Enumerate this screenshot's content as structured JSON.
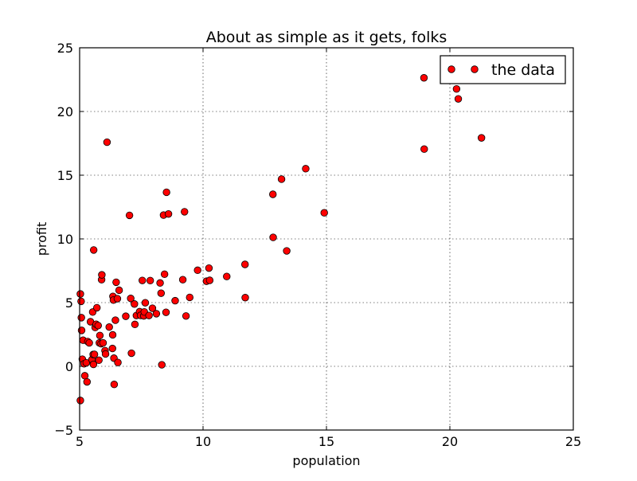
{
  "chart_data": {
    "type": "scatter",
    "title": "About as simple as it gets, folks",
    "xlabel": "population",
    "ylabel": "profit",
    "xlim": [
      5,
      25
    ],
    "ylim": [
      -5,
      25
    ],
    "xticks": [
      5,
      10,
      15,
      20,
      25
    ],
    "yticks": [
      -5,
      0,
      5,
      10,
      15,
      20,
      25
    ],
    "grid": true,
    "legend_position": "top-right",
    "series": [
      {
        "name": "the data",
        "color": "#ff0000",
        "marker": "circle",
        "points": [
          [
            5.03,
            -2.68
          ],
          [
            5.03,
            5.68
          ],
          [
            5.06,
            5.1
          ],
          [
            5.07,
            3.82
          ],
          [
            5.08,
            2.82
          ],
          [
            5.11,
            0.56
          ],
          [
            5.14,
            2.05
          ],
          [
            5.18,
            0.2
          ],
          [
            5.21,
            -0.74
          ],
          [
            5.27,
            0.28
          ],
          [
            5.3,
            -1.22
          ],
          [
            5.33,
            1.94
          ],
          [
            5.39,
            1.84
          ],
          [
            5.44,
            3.5
          ],
          [
            5.5,
            0.53
          ],
          [
            5.53,
            4.26
          ],
          [
            5.55,
            0.93
          ],
          [
            5.56,
            0.15
          ],
          [
            5.57,
            9.13
          ],
          [
            5.6,
            0.94
          ],
          [
            5.63,
            3.05
          ],
          [
            5.67,
            3.3
          ],
          [
            5.7,
            4.6
          ],
          [
            5.75,
            3.2
          ],
          [
            5.78,
            0.48
          ],
          [
            5.8,
            1.84
          ],
          [
            5.82,
            2.42
          ],
          [
            5.87,
            1.78
          ],
          [
            5.89,
            6.8
          ],
          [
            5.9,
            7.18
          ],
          [
            5.95,
            1.84
          ],
          [
            6.03,
            1.23
          ],
          [
            6.05,
            0.97
          ],
          [
            6.11,
            17.59
          ],
          [
            6.2,
            3.08
          ],
          [
            6.33,
            1.4
          ],
          [
            6.34,
            2.47
          ],
          [
            6.35,
            5.49
          ],
          [
            6.37,
            5.2
          ],
          [
            6.39,
            0.64
          ],
          [
            6.4,
            -1.42
          ],
          [
            6.45,
            3.62
          ],
          [
            6.48,
            6.6
          ],
          [
            6.53,
            5.31
          ],
          [
            6.55,
            0.3
          ],
          [
            6.6,
            5.97
          ],
          [
            6.87,
            3.93
          ],
          [
            7.02,
            11.85
          ],
          [
            7.07,
            5.33
          ],
          [
            7.1,
            1.03
          ],
          [
            7.22,
            4.89
          ],
          [
            7.24,
            3.29
          ],
          [
            7.3,
            3.99
          ],
          [
            7.43,
            4.29
          ],
          [
            7.47,
            4.0
          ],
          [
            7.54,
            6.74
          ],
          [
            7.6,
            3.96
          ],
          [
            7.62,
            4.27
          ],
          [
            7.66,
            4.99
          ],
          [
            7.81,
            3.99
          ],
          [
            7.86,
            6.73
          ],
          [
            7.95,
            4.56
          ],
          [
            8.11,
            4.13
          ],
          [
            8.26,
            6.54
          ],
          [
            8.3,
            5.74
          ],
          [
            8.33,
            0.12
          ],
          [
            8.4,
            11.87
          ],
          [
            8.44,
            7.23
          ],
          [
            8.5,
            4.24
          ],
          [
            8.52,
            13.66
          ],
          [
            8.6,
            11.96
          ],
          [
            8.87,
            5.15
          ],
          [
            9.18,
            6.8
          ],
          [
            9.25,
            12.13
          ],
          [
            9.31,
            3.95
          ],
          [
            9.46,
            5.41
          ],
          [
            9.78,
            7.54
          ],
          [
            10.14,
            6.68
          ],
          [
            10.24,
            7.71
          ],
          [
            10.27,
            6.75
          ],
          [
            10.96,
            7.05
          ],
          [
            11.7,
            8.0
          ],
          [
            11.71,
            5.39
          ],
          [
            12.83,
            13.5
          ],
          [
            12.84,
            10.12
          ],
          [
            13.18,
            14.69
          ],
          [
            13.39,
            9.06
          ],
          [
            14.16,
            15.51
          ],
          [
            14.91,
            12.05
          ],
          [
            18.95,
            22.64
          ],
          [
            18.96,
            17.05
          ],
          [
            20.27,
            21.77
          ],
          [
            20.34,
            20.99
          ],
          [
            21.28,
            17.93
          ]
        ]
      }
    ]
  }
}
